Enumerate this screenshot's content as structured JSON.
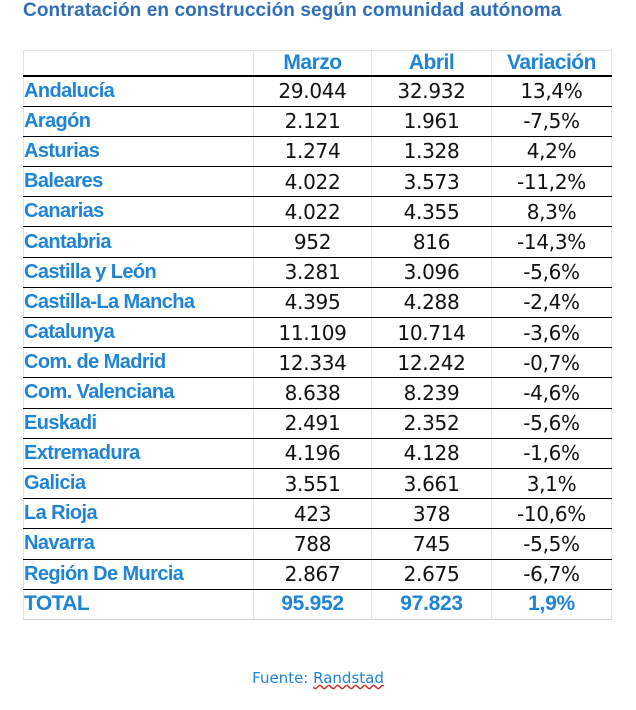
{
  "title": "Contratación en construcción según comunidad autónoma",
  "table": {
    "headers": [
      "",
      "Marzo",
      "Abril",
      "Variación"
    ],
    "rows": [
      {
        "region": "Andalucía",
        "marzo": "29.044",
        "abril": "32.932",
        "variacion": "13,4%"
      },
      {
        "region": "Aragón",
        "marzo": "2.121",
        "abril": "1.961",
        "variacion": "-7,5%"
      },
      {
        "region": "Asturias",
        "marzo": "1.274",
        "abril": "1.328",
        "variacion": "4,2%"
      },
      {
        "region": "Baleares",
        "marzo": "4.022",
        "abril": "3.573",
        "variacion": "-11,2%"
      },
      {
        "region": "Canarias",
        "marzo": "4.022",
        "abril": "4.355",
        "variacion": "8,3%"
      },
      {
        "region": "Cantabria",
        "marzo": "952",
        "abril": "816",
        "variacion": "-14,3%"
      },
      {
        "region": "Castilla y León",
        "marzo": "3.281",
        "abril": "3.096",
        "variacion": "-5,6%"
      },
      {
        "region": "Castilla-La Mancha",
        "marzo": "4.395",
        "abril": "4.288",
        "variacion": "-2,4%"
      },
      {
        "region": "Catalunya",
        "marzo": "11.109",
        "abril": "10.714",
        "variacion": "-3,6%"
      },
      {
        "region": "Com. de Madrid",
        "marzo": "12.334",
        "abril": "12.242",
        "variacion": "-0,7%"
      },
      {
        "region": "Com. Valenciana",
        "marzo": "8.638",
        "abril": "8.239",
        "variacion": "-4,6%"
      },
      {
        "region": "Euskadi",
        "marzo": "2.491",
        "abril": "2.352",
        "variacion": "-5,6%"
      },
      {
        "region": "Extremadura",
        "marzo": "4.196",
        "abril": "4.128",
        "variacion": "-1,6%"
      },
      {
        "region": "Galicia",
        "marzo": "3.551",
        "abril": "3.661",
        "variacion": "3,1%"
      },
      {
        "region": "La Rioja",
        "marzo": "423",
        "abril": "378",
        "variacion": "-10,6%"
      },
      {
        "region": "Navarra",
        "marzo": "788",
        "abril": "745",
        "variacion": "-5,5%"
      },
      {
        "region": "Región De Murcia",
        "marzo": "2.867",
        "abril": "2.675",
        "variacion": "-6,7%"
      }
    ],
    "total": {
      "region": "TOTAL",
      "marzo": "95.952",
      "abril": "97.823",
      "variacion": "1,9%"
    }
  },
  "source": {
    "prefix": "Fuente: ",
    "name": "Randstad"
  },
  "colors": {
    "title": "#2f6fb8",
    "accent": "#1f84d6",
    "text": "#111111",
    "rule": "#000000"
  }
}
